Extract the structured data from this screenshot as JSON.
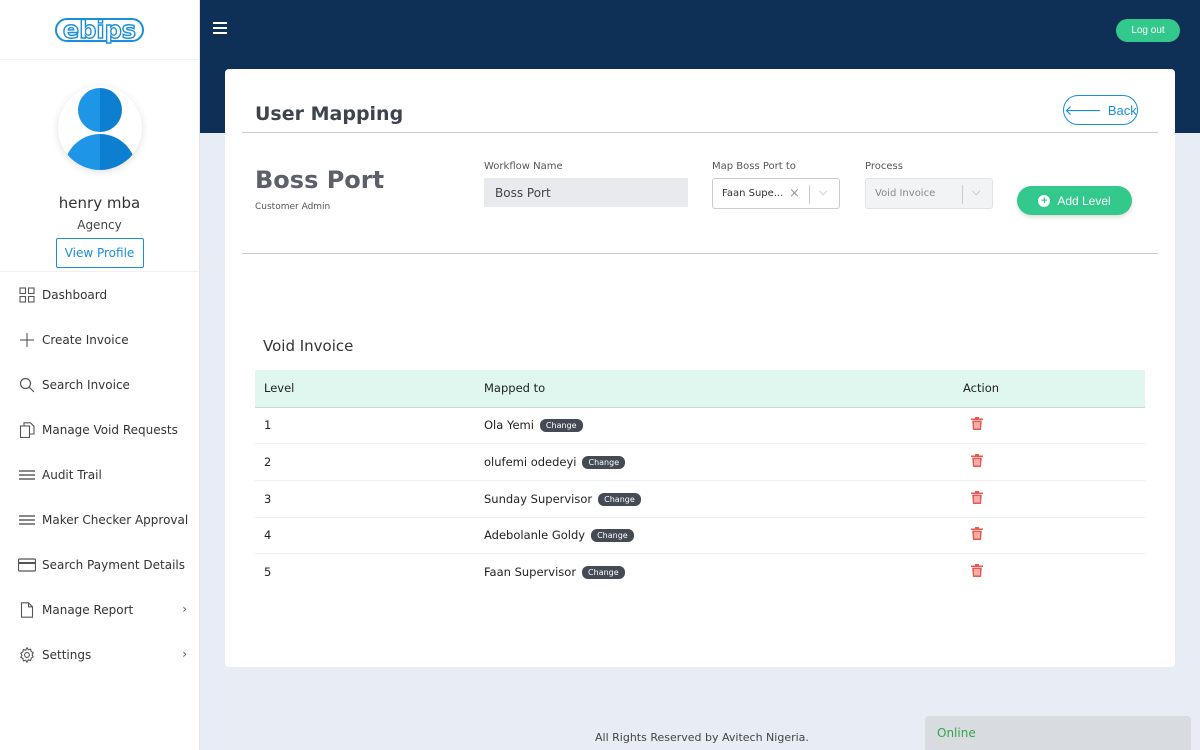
{
  "app": {
    "logo": "ebips",
    "logout_label": "Log out"
  },
  "profile": {
    "name": "henry mba",
    "role": "Agency",
    "view_profile": "View Profile"
  },
  "sidebar": {
    "items": [
      {
        "label": "Dashboard",
        "icon": "grid-icon"
      },
      {
        "label": "Create Invoice",
        "icon": "plus-icon"
      },
      {
        "label": "Search Invoice",
        "icon": "search-icon"
      },
      {
        "label": "Manage Void Requests",
        "icon": "documents-icon"
      },
      {
        "label": "Audit Trail",
        "icon": "lines-icon"
      },
      {
        "label": "Maker Checker Approval",
        "icon": "lines-icon"
      },
      {
        "label": "Search Payment Details",
        "icon": "card-icon"
      },
      {
        "label": "Manage Report",
        "icon": "file-icon",
        "chevron": true
      },
      {
        "label": "Settings",
        "icon": "gear-icon",
        "chevron": true
      }
    ]
  },
  "page": {
    "title": "User Mapping",
    "back_label": "Back",
    "port_name": "Boss Port",
    "port_sub": "Customer Admin",
    "workflow_label": "Workflow Name",
    "workflow_value": "Boss Port",
    "map_label": "Map Boss Port to",
    "map_value": "Faan Supe...",
    "process_label": "Process",
    "process_value": "Void Invoice",
    "add_level_label": "Add Level"
  },
  "table": {
    "title": "Void Invoice",
    "headers": [
      "Level",
      "Mapped to",
      "Action"
    ],
    "change_label": "Change",
    "rows": [
      {
        "level": "1",
        "mapped": "Ola Yemi"
      },
      {
        "level": "2",
        "mapped": "olufemi odedeyi"
      },
      {
        "level": "3",
        "mapped": "Sunday Supervisor"
      },
      {
        "level": "4",
        "mapped": "Adebolanle Goldy"
      },
      {
        "level": "5",
        "mapped": "Faan Supervisor"
      }
    ]
  },
  "footer": {
    "text": "All Rights Reserved by Avitech Nigeria.",
    "status": "Online"
  },
  "colors": {
    "navy": "#0e3057",
    "accent_green": "#33c98d",
    "link_blue": "#1b8fd9",
    "table_header": "#dff7ee",
    "trash_red": "#e85a4f"
  }
}
